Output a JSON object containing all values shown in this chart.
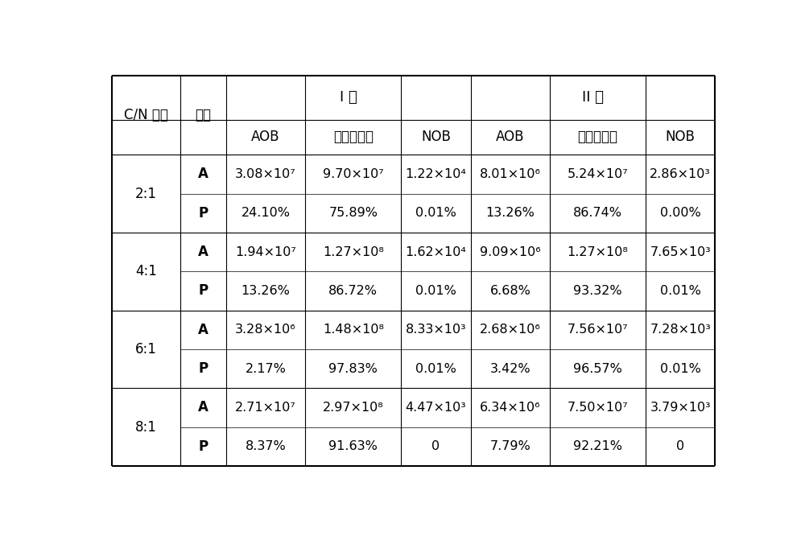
{
  "col1_header": "C/N 比例",
  "col2_header": "项目",
  "pool1_header": "I 池",
  "pool2_header": "II 池",
  "sub_headers": [
    "AOB",
    "反硒化细菌",
    "NOB",
    "AOB",
    "反硒化细菌",
    "NOB"
  ],
  "rows": [
    {
      "cn": "2:1",
      "sub": [
        [
          "A",
          "3.08×10⁷",
          "9.70×10⁷",
          "1.22×10⁴",
          "8.01×10⁶",
          "5.24×10⁷",
          "2.86×10³"
        ],
        [
          "P",
          "24.10%",
          "75.89%",
          "0.01%",
          "13.26%",
          "86.74%",
          "0.00%"
        ]
      ]
    },
    {
      "cn": "4:1",
      "sub": [
        [
          "A",
          "1.94×10⁷",
          "1.27×10⁸",
          "1.62×10⁴",
          "9.09×10⁶",
          "1.27×10⁸",
          "7.65×10³"
        ],
        [
          "P",
          "13.26%",
          "86.72%",
          "0.01%",
          "6.68%",
          "93.32%",
          "0.01%"
        ]
      ]
    },
    {
      "cn": "6:1",
      "sub": [
        [
          "A",
          "3.28×10⁶",
          "1.48×10⁸",
          "8.33×10³",
          "2.68×10⁶",
          "7.56×10⁷",
          "7.28×10³"
        ],
        [
          "P",
          "2.17%",
          "97.83%",
          "0.01%",
          "3.42%",
          "96.57%",
          "0.01%"
        ]
      ]
    },
    {
      "cn": "8:1",
      "sub": [
        [
          "A",
          "2.71×10⁷",
          "2.97×10⁸",
          "4.47×10³",
          "6.34×10⁶",
          "7.50×10⁷",
          "3.79×10³"
        ],
        [
          "P",
          "8.37%",
          "91.63%",
          "0",
          "7.79%",
          "92.21%",
          "0"
        ]
      ]
    }
  ],
  "bg_color": "#ffffff",
  "line_color": "#000000",
  "text_color": "#000000",
  "outer_lw": 1.5,
  "inner_lw": 0.8,
  "thin_lw": 0.5,
  "font_size": 12
}
